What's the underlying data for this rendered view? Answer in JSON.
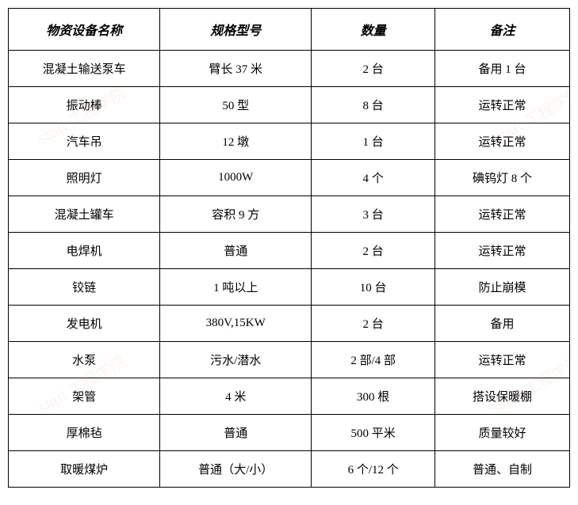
{
  "table": {
    "headers": [
      "物资设备名称",
      "规格型号",
      "数量",
      "备注"
    ],
    "rows": [
      [
        "混凝土输送泵车",
        "臂长 37 米",
        "2 台",
        "备用 1 台"
      ],
      [
        "振动棒",
        "50 型",
        "8 台",
        "运转正常"
      ],
      [
        "汽车吊",
        "12 墩",
        "1 台",
        "运转正常"
      ],
      [
        "照明灯",
        "1000W",
        "4 个",
        "碘钨灯 8 个"
      ],
      [
        "混凝土罐车",
        "容积 9 方",
        "3 台",
        "运转正常"
      ],
      [
        "电焊机",
        "普通",
        "2 台",
        "运转正常"
      ],
      [
        "铰链",
        "1 吨以上",
        "10 台",
        "防止崩模"
      ],
      [
        "发电机",
        "380V,15KW",
        "2 台",
        "备用"
      ],
      [
        "水泵",
        "污水/潜水",
        "2 部/4 部",
        "运转正常"
      ],
      [
        "架管",
        "4 米",
        "300 根",
        "搭设保暖棚"
      ],
      [
        "厚棉毡",
        "普通",
        "500 平米",
        "质量较好"
      ],
      [
        "取暖煤炉",
        "普通（大/小）",
        "6 个/12 个",
        "普通、自制"
      ]
    ],
    "border_color": "#000000",
    "background_color": "#ffffff",
    "text_color": "#000000",
    "header_fontsize": 16,
    "cell_fontsize": 15,
    "col_widths": [
      "27%",
      "27%",
      "22%",
      "24%"
    ]
  },
  "watermark": {
    "text": "start 工程学院",
    "color": "rgba(200,120,80,0.08)"
  }
}
